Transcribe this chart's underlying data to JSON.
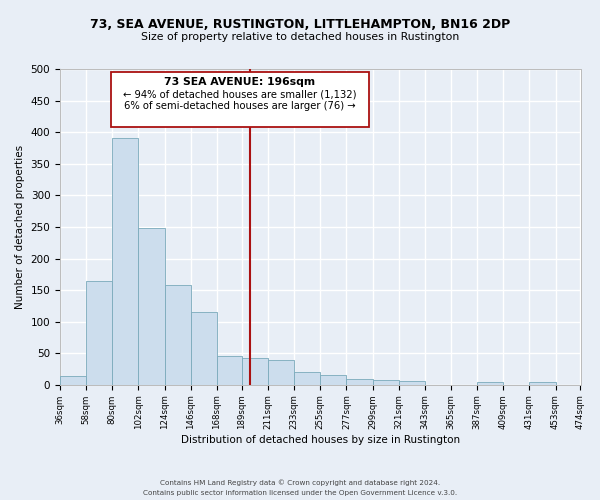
{
  "title": "73, SEA AVENUE, RUSTINGTON, LITTLEHAMPTON, BN16 2DP",
  "subtitle": "Size of property relative to detached houses in Rustington",
  "xlabel": "Distribution of detached houses by size in Rustington",
  "ylabel": "Number of detached properties",
  "bar_color": "#ccdded",
  "bar_edge_color": "#7aaabb",
  "bg_color": "#e8eef6",
  "grid_color": "#ffffff",
  "vline_color": "#aa1111",
  "vline_x": 196,
  "annotation_title": "73 SEA AVENUE: 196sqm",
  "annotation_line1": "← 94% of detached houses are smaller (1,132)",
  "annotation_line2": "6% of semi-detached houses are larger (76) →",
  "bin_edges": [
    36,
    58,
    80,
    102,
    124,
    146,
    168,
    189,
    211,
    233,
    255,
    277,
    299,
    321,
    343,
    365,
    387,
    409,
    431,
    453,
    474
  ],
  "bin_heights": [
    14,
    165,
    390,
    248,
    158,
    115,
    45,
    42,
    39,
    20,
    16,
    10,
    7,
    6,
    0,
    0,
    5,
    0,
    5,
    0
  ],
  "ylim": [
    0,
    500
  ],
  "yticks": [
    0,
    50,
    100,
    150,
    200,
    250,
    300,
    350,
    400,
    450,
    500
  ],
  "footer1": "Contains HM Land Registry data © Crown copyright and database right 2024.",
  "footer2": "Contains public sector information licensed under the Open Government Licence v.3.0."
}
